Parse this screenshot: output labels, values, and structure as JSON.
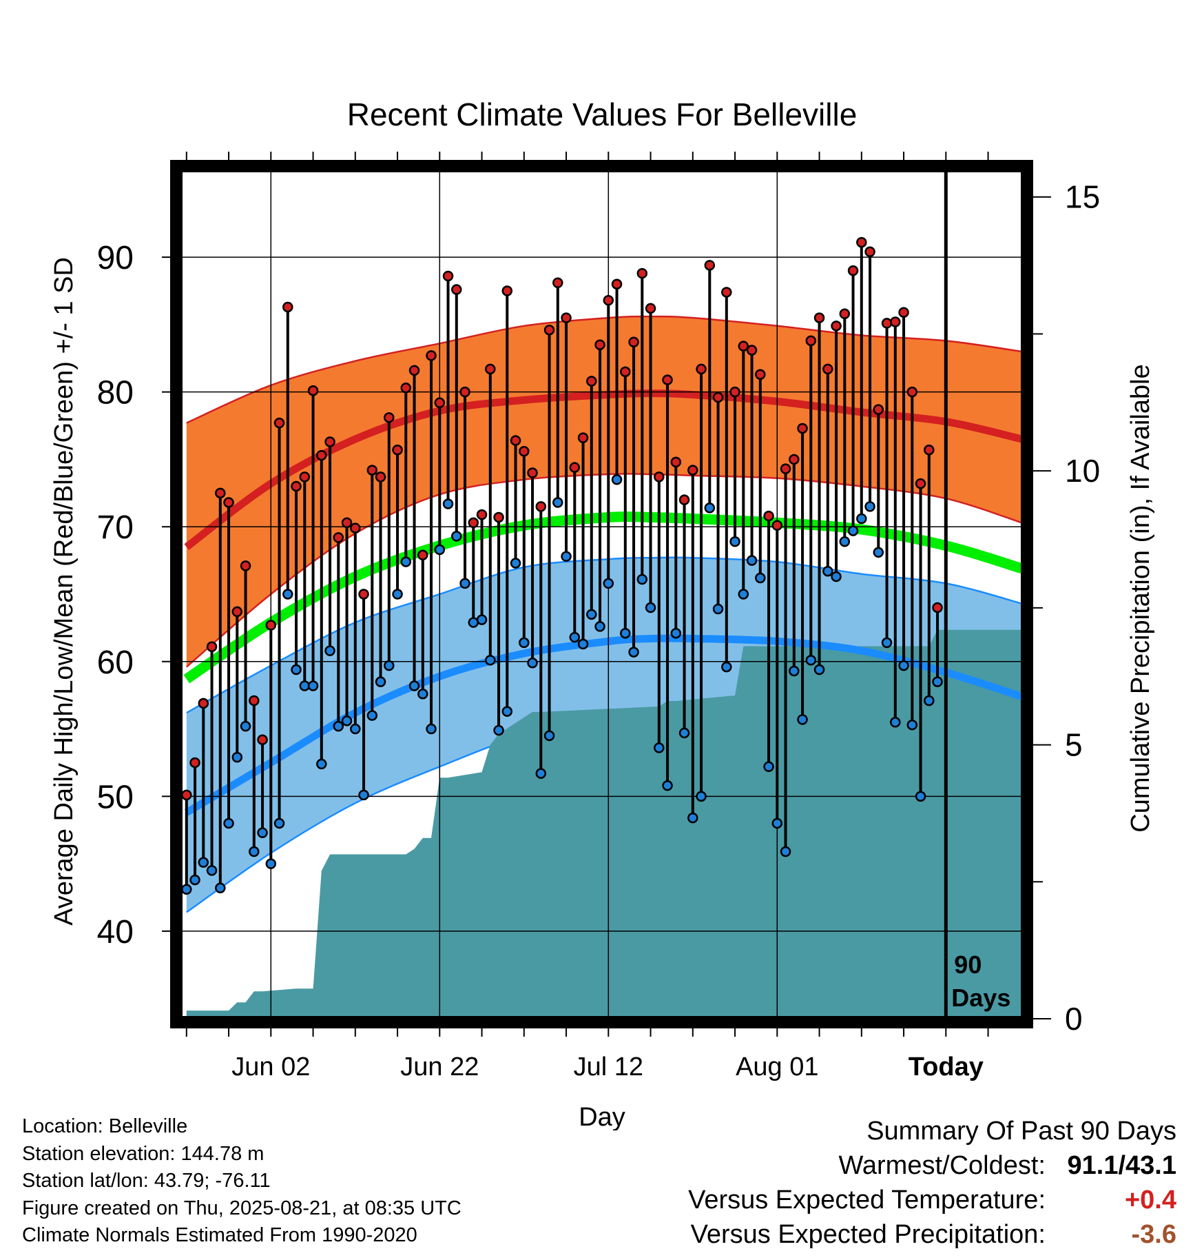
{
  "chart_data": {
    "type": "line",
    "title": "Recent Climate Values For Belleville",
    "xlabel": "Day",
    "ylabel": "Average Daily High/Low/Mean (Red/Blue/Green) +/- 1 SD",
    "y2label": "Cumulative Precipitation (in), If Available",
    "ylim": [
      33.5,
      96.5
    ],
    "y2lim": [
      0,
      15.5
    ],
    "yticks": [
      40,
      50,
      60,
      70,
      80,
      90
    ],
    "y2ticks": [
      0,
      5,
      10,
      15
    ],
    "xticks": [
      {
        "day": 10,
        "label": "Jun 02"
      },
      {
        "day": 30,
        "label": "Jun 22"
      },
      {
        "day": 50,
        "label": "Jul 12"
      },
      {
        "day": 70,
        "label": "Aug 01"
      },
      {
        "day": 90,
        "label": "Today"
      }
    ],
    "xlim": [
      -0.8,
      99.2
    ],
    "today_marker": {
      "day": 90,
      "label_line1": "90",
      "label_line2": "Days"
    },
    "colors": {
      "high_band": "#f47a30",
      "high_edge": "#d42020",
      "high_normal": "#d42020",
      "low_band": "#82bfe8",
      "low_edge": "#1a8cff",
      "low_normal": "#1a8cff",
      "mean_normal": "#00ee00",
      "precip": "#4a9aa4",
      "high_dot": "#d42020",
      "low_dot": "#1e7fd8"
    },
    "normals": {
      "days": [
        0,
        10,
        20,
        30,
        40,
        50,
        55,
        60,
        70,
        80,
        90,
        99
      ],
      "high_mean": [
        68.5,
        73.2,
        76.5,
        78.6,
        79.4,
        79.8,
        79.9,
        79.8,
        79.3,
        78.5,
        77.8,
        76.5
      ],
      "high_upper": [
        77.7,
        80.5,
        82.3,
        83.6,
        84.9,
        85.5,
        85.6,
        85.5,
        84.9,
        84.2,
        83.8,
        83.0
      ],
      "high_lower": [
        59.6,
        65.0,
        69.5,
        72.4,
        73.5,
        73.9,
        73.9,
        73.8,
        73.6,
        73.0,
        72.1,
        70.3
      ],
      "mean": [
        58.7,
        62.9,
        66.3,
        68.6,
        70.1,
        70.7,
        70.7,
        70.6,
        70.3,
        69.8,
        68.6,
        66.9
      ],
      "low_upper": [
        56.2,
        59.7,
        62.9,
        65.0,
        67.0,
        67.6,
        67.7,
        67.7,
        67.4,
        66.5,
        65.8,
        64.3
      ],
      "low_mean": [
        48.8,
        52.5,
        56.2,
        58.9,
        60.6,
        61.5,
        61.7,
        61.7,
        61.5,
        60.8,
        59.2,
        57.4
      ],
      "low_lower": [
        41.4,
        45.8,
        49.5,
        52.2,
        54.5,
        55.5,
        55.8,
        55.9,
        55.7,
        54.7,
        53.5,
        50.8
      ]
    },
    "observed": {
      "start_day": 0,
      "high": [
        50.1,
        52.5,
        56.9,
        61.1,
        72.5,
        71.8,
        63.7,
        67.1,
        57.1,
        54.2,
        62.7,
        77.7,
        86.3,
        73.0,
        73.7,
        80.1,
        75.3,
        76.3,
        69.2,
        70.3,
        69.9,
        65.0,
        74.2,
        73.7,
        78.1,
        75.7,
        80.3,
        81.6,
        67.9,
        82.7,
        79.2,
        88.6,
        87.6,
        80.0,
        70.3,
        70.9,
        81.7,
        70.7,
        87.5,
        76.4,
        75.6,
        74.0,
        71.5,
        84.6,
        88.1,
        85.5,
        74.4,
        76.6,
        80.8,
        83.5,
        86.8,
        88.0,
        81.5,
        83.7,
        88.8,
        86.2,
        73.7,
        80.9,
        74.8,
        72.0,
        74.2,
        81.7,
        89.4,
        79.6,
        87.4,
        80.0,
        83.4,
        83.1,
        81.3,
        70.8,
        70.1,
        74.3,
        75.0,
        77.3,
        83.8,
        85.5,
        81.7,
        84.9,
        85.8,
        89.0,
        91.1,
        90.4,
        78.7,
        85.1,
        85.2,
        85.9,
        80.0,
        73.2,
        75.7,
        64.0
      ],
      "low": [
        43.1,
        43.8,
        45.1,
        44.5,
        43.2,
        48.0,
        52.9,
        55.2,
        45.9,
        47.3,
        45.0,
        48.0,
        65.0,
        59.4,
        58.2,
        58.2,
        52.4,
        60.8,
        55.2,
        55.6,
        55.0,
        50.1,
        56.0,
        58.5,
        59.7,
        65.0,
        67.4,
        58.2,
        57.6,
        55.0,
        68.3,
        71.7,
        69.3,
        65.8,
        62.9,
        63.1,
        60.1,
        54.9,
        56.3,
        67.3,
        61.4,
        59.9,
        51.7,
        54.5,
        71.8,
        67.8,
        61.8,
        61.3,
        63.5,
        62.6,
        65.8,
        73.5,
        62.1,
        60.7,
        66.1,
        64.0,
        53.6,
        50.8,
        62.1,
        54.7,
        48.4,
        50.0,
        71.4,
        63.9,
        59.6,
        68.9,
        65.0,
        67.5,
        66.2,
        52.2,
        48.0,
        45.9,
        59.3,
        55.7,
        60.1,
        59.4,
        66.7,
        66.3,
        68.9,
        69.7,
        70.6,
        71.5,
        68.1,
        61.4,
        55.5,
        59.7,
        55.3,
        50.0,
        57.1,
        58.5
      ]
    },
    "precip": {
      "days": [
        0,
        5,
        6,
        7,
        8,
        9,
        13,
        15,
        16,
        17,
        18,
        26,
        27,
        28,
        29,
        30,
        31,
        35,
        36,
        37,
        38,
        41,
        42,
        56,
        57,
        58,
        65,
        66,
        67,
        88,
        89,
        90,
        99
      ],
      "cumulative": [
        0.15,
        0.15,
        0.3,
        0.3,
        0.5,
        0.5,
        0.55,
        0.55,
        2.7,
        3.0,
        3.0,
        3.0,
        3.1,
        3.3,
        3.3,
        4.4,
        4.4,
        4.5,
        5.0,
        5.2,
        5.3,
        5.6,
        5.6,
        5.7,
        5.8,
        5.8,
        5.9,
        6.8,
        6.8,
        6.8,
        7.1,
        7.1,
        7.1
      ]
    }
  },
  "info": {
    "location": "Location: Belleville",
    "elevation": "Station elevation: 144.78 m",
    "latlon": "Station lat/lon: 43.79; -76.11",
    "created": "Figure created on Thu, 2025-08-21, at 08:35 UTC",
    "normals": "Climate Normals Estimated From 1990-2020"
  },
  "summary": {
    "heading": "Summary Of Past 90 Days",
    "warmest_label": "Warmest/Coldest:",
    "warmest_value": "91.1/43.1",
    "temp_label": "Versus Expected Temperature:",
    "temp_value": "+0.4",
    "temp_color": "#d42020",
    "precip_label": "Versus Expected Precipitation:",
    "precip_value": "-3.6",
    "precip_color": "#a0522d"
  }
}
